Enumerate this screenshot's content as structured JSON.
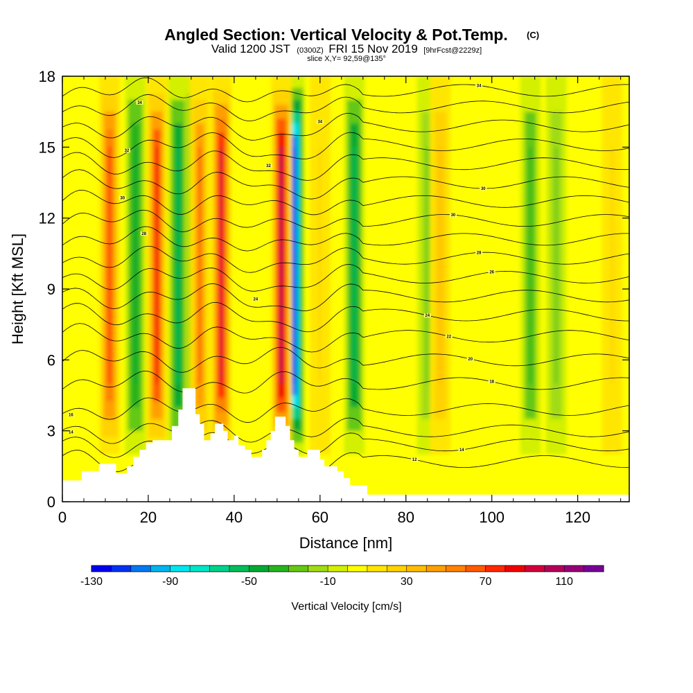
{
  "chart_data": {
    "type": "heatmap",
    "title": "Angled Section: Vertical Velocity & Pot.Temp.",
    "title_units": "(C)",
    "subtitle_parts": [
      "Valid 1200 JST",
      "(0300Z)",
      "FRI 15 Nov 2019",
      "[9hrFcst@2229z]"
    ],
    "slice_info": "slice X,Y= 92,59@135°",
    "xlabel": "Distance [nm]",
    "ylabel": "Height [Kft MSL]",
    "xlim": [
      0,
      132
    ],
    "ylim": [
      0,
      18
    ],
    "x_ticks": [
      "0",
      "20",
      "40",
      "60",
      "80",
      "100",
      "120"
    ],
    "x_tick_values": [
      0,
      20,
      40,
      60,
      80,
      100,
      120
    ],
    "y_ticks": [
      "0",
      "3",
      "6",
      "9",
      "12",
      "15",
      "18"
    ],
    "y_tick_values": [
      0,
      3,
      6,
      9,
      12,
      15,
      18
    ],
    "colorbar": {
      "title": "Vertical Velocity [cm/s]",
      "min": -130,
      "step": 10,
      "colors": [
        "#0000f0",
        "#0032f0",
        "#0078f0",
        "#00b4f0",
        "#00e6f0",
        "#00e6c8",
        "#00d28c",
        "#00be5a",
        "#00aa32",
        "#28b41e",
        "#64c814",
        "#a0dc14",
        "#d2f000",
        "#ffff00",
        "#ffe600",
        "#ffd200",
        "#ffbe00",
        "#ffa000",
        "#ff8200",
        "#ff5a00",
        "#ff2800",
        "#f00000",
        "#d2003c",
        "#b4005a",
        "#960078",
        "#780096"
      ],
      "tick_labels": [
        "-130",
        "-90",
        "-50",
        "-10",
        "30",
        "70",
        "110"
      ],
      "tick_values": [
        -130,
        -90,
        -50,
        -10,
        30,
        70,
        110
      ]
    },
    "updrafts": [
      {
        "x": 11,
        "value": 70
      },
      {
        "x": 22,
        "value": 80
      },
      {
        "x": 32,
        "value": 60
      },
      {
        "x": 37,
        "value": 90
      },
      {
        "x": 51,
        "value": 100
      },
      {
        "x": 60,
        "value": 20
      },
      {
        "x": 88,
        "value": 30
      },
      {
        "x": 128,
        "value": 20
      }
    ],
    "downdrafts": [
      {
        "x": 17,
        "value": -50
      },
      {
        "x": 27,
        "value": -60
      },
      {
        "x": 31,
        "value": -80
      },
      {
        "x": 54,
        "value": -120
      },
      {
        "x": 60,
        "value": -90
      },
      {
        "x": 68,
        "value": -60
      },
      {
        "x": 85,
        "value": -30
      },
      {
        "x": 109,
        "value": -40
      },
      {
        "x": 115,
        "value": -30
      }
    ],
    "terrain": [
      [
        0,
        0.9
      ],
      [
        4.5,
        0.9
      ],
      [
        4.5,
        1.3
      ],
      [
        8.5,
        1.3
      ],
      [
        8.5,
        1.6
      ],
      [
        12.5,
        1.6
      ],
      [
        12.5,
        1.2
      ],
      [
        15,
        1.2
      ],
      [
        15,
        1.5
      ],
      [
        16.5,
        1.5
      ],
      [
        16.5,
        1.9
      ],
      [
        18,
        1.9
      ],
      [
        18,
        2.2
      ],
      [
        19.5,
        2.2
      ],
      [
        19.5,
        2.5
      ],
      [
        21,
        2.5
      ],
      [
        21,
        2.6
      ],
      [
        25.5,
        2.6
      ],
      [
        25.5,
        3.2
      ],
      [
        27,
        3.2
      ],
      [
        27,
        3.9
      ],
      [
        28,
        3.9
      ],
      [
        28,
        4.8
      ],
      [
        31,
        4.8
      ],
      [
        31,
        3.7
      ],
      [
        32,
        3.7
      ],
      [
        32,
        3.3
      ],
      [
        33,
        3.3
      ],
      [
        33,
        2.6
      ],
      [
        34.5,
        2.6
      ],
      [
        34.5,
        2.9
      ],
      [
        35.5,
        2.9
      ],
      [
        35.5,
        3.3
      ],
      [
        37.5,
        3.3
      ],
      [
        37.5,
        3.0
      ],
      [
        38.5,
        3.0
      ],
      [
        38.5,
        2.6
      ],
      [
        40,
        2.6
      ],
      [
        40,
        2.8
      ],
      [
        41,
        2.8
      ],
      [
        41,
        2.4
      ],
      [
        42.5,
        2.4
      ],
      [
        42.5,
        2.2
      ],
      [
        44,
        2.2
      ],
      [
        44,
        1.9
      ],
      [
        46.5,
        1.9
      ],
      [
        46.5,
        2.2
      ],
      [
        47.5,
        2.2
      ],
      [
        47.5,
        2.6
      ],
      [
        48.5,
        2.6
      ],
      [
        48.5,
        3.0
      ],
      [
        49.5,
        3.0
      ],
      [
        49.5,
        3.6
      ],
      [
        52,
        3.6
      ],
      [
        52,
        3.2
      ],
      [
        53,
        3.2
      ],
      [
        53,
        2.6
      ],
      [
        54,
        2.6
      ],
      [
        54,
        2.2
      ],
      [
        55,
        2.2
      ],
      [
        55,
        1.9
      ],
      [
        57,
        1.9
      ],
      [
        57,
        2.2
      ],
      [
        60,
        2.2
      ],
      [
        60,
        1.8
      ],
      [
        61,
        1.8
      ],
      [
        61,
        1.5
      ],
      [
        64,
        1.5
      ],
      [
        64,
        1.3
      ],
      [
        65.5,
        1.3
      ],
      [
        65.5,
        1.0
      ],
      [
        67,
        1.0
      ],
      [
        67,
        0.7
      ],
      [
        71,
        0.7
      ],
      [
        71,
        0.3
      ],
      [
        132,
        0.3
      ]
    ],
    "isentropes": [
      {
        "base": 1.7,
        "label": "12",
        "label_x": 82
      },
      {
        "base": 2.4,
        "label": "14",
        "label_x": 93
      },
      {
        "base": 3.0,
        "label": "14",
        "label_x": 2
      },
      {
        "base": 3.9,
        "label": "16",
        "label_x": 2
      },
      {
        "base": 5.0,
        "label": "18",
        "label_x": 100
      },
      {
        "base": 6.0,
        "label": "20",
        "label_x": 95
      },
      {
        "base": 7.0,
        "label": "22",
        "label_x": 90
      },
      {
        "base": 7.9,
        "label": "24",
        "label_x": 85
      },
      {
        "base": 8.7,
        "label": "24",
        "label_x": 45
      },
      {
        "base": 9.5,
        "label": "26",
        "label_x": 100
      },
      {
        "base": 10.3,
        "label": "28",
        "label_x": 97
      },
      {
        "base": 11.1,
        "label": "28",
        "label_x": 19
      },
      {
        "base": 11.9,
        "label": "30",
        "label_x": 91
      },
      {
        "base": 12.7,
        "label": "30",
        "label_x": 14
      },
      {
        "base": 13.5,
        "label": "30",
        "label_x": 98
      },
      {
        "base": 14.3,
        "label": "32",
        "label_x": 48
      },
      {
        "base": 15.1,
        "label": "32",
        "label_x": 15
      },
      {
        "base": 15.9,
        "label": "34",
        "label_x": 60
      },
      {
        "base": 16.7,
        "label": "34",
        "label_x": 18
      },
      {
        "base": 17.4,
        "label": "34",
        "label_x": 97
      }
    ]
  }
}
